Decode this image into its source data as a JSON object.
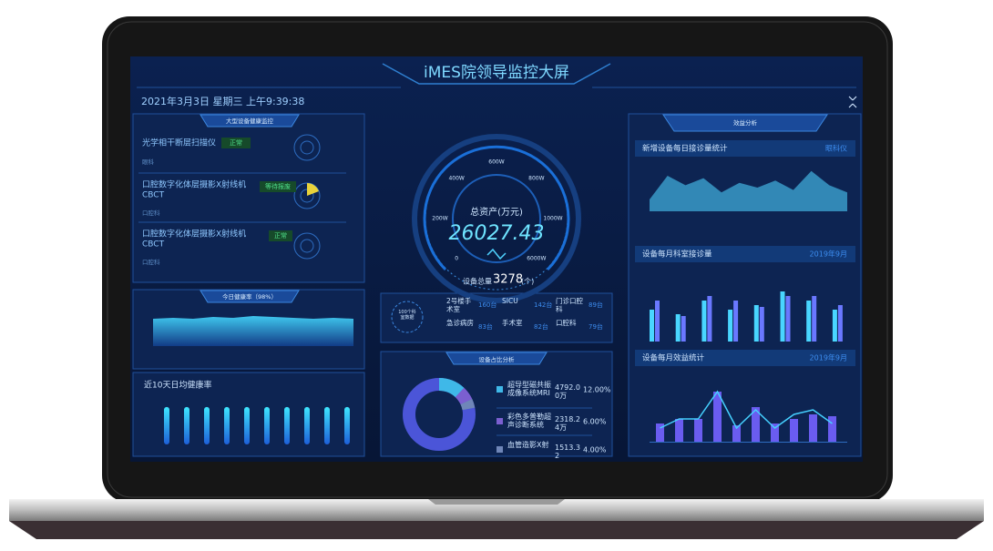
{
  "header": {
    "title": "iMES院领导监控大屏",
    "datetime": "2021年3月3日 星期三 上午9:39:38"
  },
  "equipment_health": {
    "title": "大型设备健康监控",
    "devices": [
      {
        "name": "光学相干断层扫描仪",
        "status": "正常",
        "department": "眼科"
      },
      {
        "name": "口腔数字化体层摄影X射线机",
        "model": "CBCT",
        "status": "等待报废",
        "department": "口腔科"
      },
      {
        "name": "口腔数字化体层摄影X射线机",
        "model": "CBCT",
        "status": "正常",
        "department": "口腔科"
      }
    ]
  },
  "health_today": {
    "title": "今日健康率（98%）",
    "values": [
      30,
      31,
      30,
      32,
      31,
      33,
      32,
      31,
      30,
      31,
      30
    ]
  },
  "health_10_days": {
    "title": "近10天日均健康率",
    "values": [
      98,
      98,
      98,
      98,
      98,
      98,
      98,
      98,
      98,
      98
    ]
  },
  "assets": {
    "label": "总资产(万元)",
    "value": 26027.43,
    "ticks": [
      "0",
      "200W",
      "400W",
      "600W",
      "800W",
      "1000W",
      "6000W"
    ],
    "device_total_label": "设备总量",
    "device_total": 3278,
    "device_total_unit": "(个)"
  },
  "departments": {
    "badge": "100个科室数据",
    "rows": [
      [
        {
          "name": "2号楼手术室",
          "count": "160台"
        },
        {
          "name": "SICU",
          "count": "142台"
        },
        {
          "name": "门诊口腔科",
          "count": "89台"
        }
      ],
      [
        {
          "name": "急诊病房",
          "count": "83台"
        },
        {
          "name": "手术室",
          "count": "82台"
        },
        {
          "name": "口腔科",
          "count": "79台"
        }
      ]
    ]
  },
  "share": {
    "title": "设备占比分析",
    "items": [
      {
        "name": "超导型磁共振成像系统MRI",
        "amount": "4792.00万",
        "share": 12,
        "share_label": "12.00%",
        "color": "#3fb8e8"
      },
      {
        "name": "彩色多普勒超声诊断系统",
        "amount": "2318.24万",
        "share": 6,
        "share_label": "6.00%",
        "color": "#7b5fd0"
      },
      {
        "name": "血管造影X射",
        "amount": "1513.32",
        "share": 4,
        "share_label": "4.00%",
        "color": "#6f86b8"
      }
    ]
  },
  "benefit": {
    "title": "效益分析",
    "daily": {
      "title": "新增设备每日接诊量统计",
      "filter": "眼科仪",
      "color": "#3fa9d8",
      "values": [
        10,
        30,
        22,
        28,
        16,
        24,
        20,
        26,
        18,
        34,
        22,
        16
      ]
    },
    "monthly_visits": {
      "title": "设备每月科室接诊量",
      "period": "2019年9月",
      "series": [
        {
          "color": "#49d6ff",
          "values": [
            35,
            30,
            45,
            35,
            40,
            55,
            45,
            35
          ]
        },
        {
          "color": "#6a78ff",
          "values": [
            45,
            28,
            50,
            45,
            38,
            50,
            50,
            40
          ]
        }
      ]
    },
    "monthly_benefit": {
      "title": "设备每月效益统计",
      "period": "2019年9月",
      "bars": {
        "color": "#6a5cf0",
        "values": [
          20,
          25,
          25,
          55,
          18,
          38,
          20,
          25,
          30,
          28
        ]
      },
      "line": {
        "color": "#45d0ff",
        "values": [
          15,
          25,
          25,
          55,
          15,
          35,
          15,
          30,
          35,
          20
        ]
      }
    }
  }
}
